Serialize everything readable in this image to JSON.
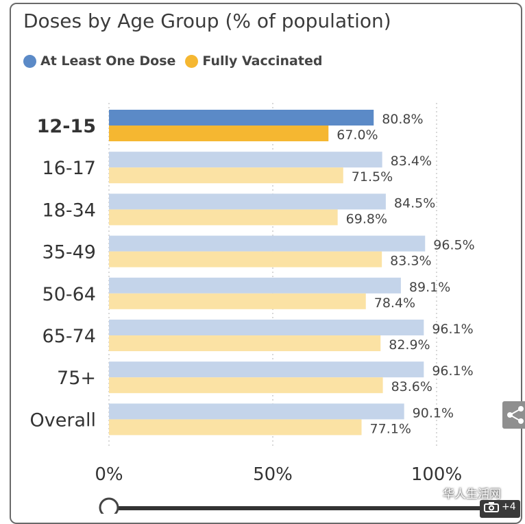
{
  "chart_data": {
    "type": "bar",
    "orientation": "horizontal",
    "title": "Doses by Age Group (% of population)",
    "categories": [
      "12-15",
      "16-17",
      "18-34",
      "35-49",
      "50-64",
      "65-74",
      "75+",
      "Overall"
    ],
    "highlighted_category": "12-15",
    "series": [
      {
        "name": "At Least One Dose",
        "values": [
          80.8,
          83.4,
          84.5,
          96.5,
          89.1,
          96.1,
          96.1,
          90.1
        ],
        "color": "#5b8ac7",
        "dimmed_color": "#c4d4ea"
      },
      {
        "name": "Fully Vaccinated",
        "values": [
          67.0,
          71.5,
          69.8,
          83.3,
          78.4,
          82.9,
          83.6,
          77.1
        ],
        "color": "#f5b731",
        "dimmed_color": "#fbe2a4"
      }
    ],
    "data_labels": [
      [
        "80.8%",
        "83.4%",
        "84.5%",
        "96.5%",
        "89.1%",
        "96.1%",
        "96.1%",
        "90.1%"
      ],
      [
        "67.0%",
        "71.5%",
        "69.8%",
        "83.3%",
        "78.4%",
        "82.9%",
        "83.6%",
        "77.1%"
      ]
    ],
    "xticks": [
      0,
      50,
      100
    ],
    "xtick_labels": [
      "0%",
      "50%",
      "100%"
    ],
    "xlim": [
      0,
      100
    ],
    "grid": "vertical-dotted",
    "legend_position": "top-left"
  },
  "icons": {
    "share": "share-icon",
    "watermark": "wechat-icon",
    "camera": "camera-icon"
  },
  "watermark": {
    "text": "华人生活网"
  },
  "camera_badge": {
    "count": "+4"
  },
  "colors": {
    "axis_text": "#333333",
    "label_text": "#444444",
    "grid": "#cccccc"
  }
}
